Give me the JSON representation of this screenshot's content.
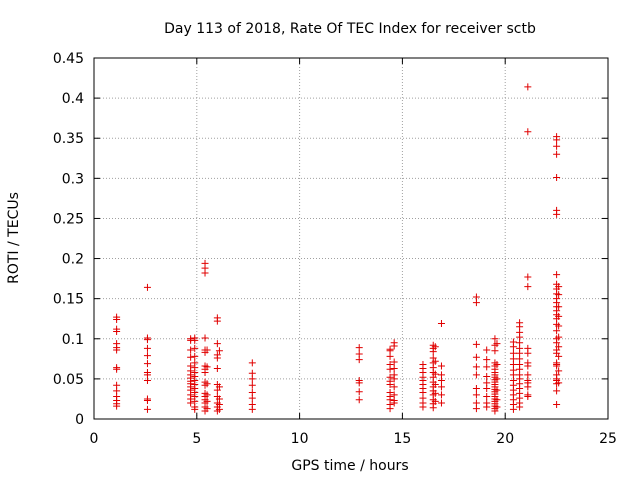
{
  "chart_data": {
    "type": "scatter",
    "title": "Day 113 of 2018, Rate Of TEC Index for receiver sctb",
    "xlabel": "GPS time / hours",
    "ylabel": "ROTI / TECUs",
    "xlim": [
      0,
      25
    ],
    "ylim": [
      0,
      0.45
    ],
    "xticks": [
      0,
      5,
      10,
      15,
      20,
      25
    ],
    "yticks": [
      0,
      0.05,
      0.1,
      0.15,
      0.2,
      0.25,
      0.3,
      0.35,
      0.4,
      0.45
    ],
    "xtick_labels": [
      "0",
      "5",
      "10",
      "15",
      "20",
      "25"
    ],
    "ytick_labels": [
      "0",
      "0.05",
      "0.1",
      "0.15",
      "0.2",
      "0.25",
      "0.3",
      "0.35",
      "0.4",
      "0.45"
    ],
    "grid": true,
    "marker": "+",
    "color": "#e00000",
    "series": [
      {
        "name": "ROTI",
        "points": [
          [
            1.1,
            0.127
          ],
          [
            1.1,
            0.124
          ],
          [
            1.1,
            0.112
          ],
          [
            1.1,
            0.109
          ],
          [
            1.1,
            0.094
          ],
          [
            1.1,
            0.089
          ],
          [
            1.1,
            0.086
          ],
          [
            1.1,
            0.064
          ],
          [
            1.1,
            0.062
          ],
          [
            1.1,
            0.042
          ],
          [
            1.1,
            0.035
          ],
          [
            1.1,
            0.028
          ],
          [
            1.1,
            0.023
          ],
          [
            1.1,
            0.019
          ],
          [
            1.1,
            0.016
          ],
          [
            2.6,
            0.164
          ],
          [
            2.6,
            0.101
          ],
          [
            2.6,
            0.099
          ],
          [
            2.6,
            0.088
          ],
          [
            2.6,
            0.079
          ],
          [
            2.6,
            0.069
          ],
          [
            2.6,
            0.058
          ],
          [
            2.6,
            0.055
          ],
          [
            2.6,
            0.048
          ],
          [
            2.6,
            0.025
          ],
          [
            2.6,
            0.023
          ],
          [
            2.6,
            0.012
          ],
          [
            4.7,
            0.1
          ],
          [
            4.7,
            0.098
          ],
          [
            4.7,
            0.086
          ],
          [
            4.7,
            0.077
          ],
          [
            4.7,
            0.066
          ],
          [
            4.7,
            0.06
          ],
          [
            4.7,
            0.055
          ],
          [
            4.7,
            0.051
          ],
          [
            4.7,
            0.047
          ],
          [
            4.7,
            0.044
          ],
          [
            4.7,
            0.04
          ],
          [
            4.7,
            0.036
          ],
          [
            4.7,
            0.03
          ],
          [
            4.7,
            0.025
          ],
          [
            4.7,
            0.02
          ],
          [
            4.9,
            0.101
          ],
          [
            4.9,
            0.098
          ],
          [
            4.9,
            0.088
          ],
          [
            4.9,
            0.078
          ],
          [
            4.9,
            0.07
          ],
          [
            4.9,
            0.064
          ],
          [
            4.9,
            0.058
          ],
          [
            4.9,
            0.053
          ],
          [
            4.9,
            0.048
          ],
          [
            4.9,
            0.043
          ],
          [
            4.9,
            0.038
          ],
          [
            4.9,
            0.033
          ],
          [
            4.9,
            0.028
          ],
          [
            4.9,
            0.022
          ],
          [
            4.9,
            0.015
          ],
          [
            4.9,
            0.012
          ],
          [
            5.4,
            0.194
          ],
          [
            5.4,
            0.188
          ],
          [
            5.4,
            0.182
          ],
          [
            5.4,
            0.101
          ],
          [
            5.4,
            0.086
          ],
          [
            5.4,
            0.083
          ],
          [
            5.4,
            0.066
          ],
          [
            5.4,
            0.062
          ],
          [
            5.4,
            0.058
          ],
          [
            5.4,
            0.046
          ],
          [
            5.4,
            0.042
          ],
          [
            5.4,
            0.032
          ],
          [
            5.4,
            0.028
          ],
          [
            5.4,
            0.024
          ],
          [
            5.4,
            0.02
          ],
          [
            5.4,
            0.015
          ],
          [
            5.4,
            0.01
          ],
          [
            5.5,
            0.086
          ],
          [
            5.5,
            0.065
          ],
          [
            5.5,
            0.044
          ],
          [
            5.5,
            0.03
          ],
          [
            5.5,
            0.022
          ],
          [
            5.5,
            0.013
          ],
          [
            6.0,
            0.126
          ],
          [
            6.0,
            0.122
          ],
          [
            6.0,
            0.094
          ],
          [
            6.0,
            0.08
          ],
          [
            6.0,
            0.076
          ],
          [
            6.0,
            0.063
          ],
          [
            6.0,
            0.043
          ],
          [
            6.0,
            0.036
          ],
          [
            6.0,
            0.028
          ],
          [
            6.0,
            0.02
          ],
          [
            6.0,
            0.015
          ],
          [
            6.0,
            0.01
          ],
          [
            6.1,
            0.085
          ],
          [
            6.1,
            0.04
          ],
          [
            6.1,
            0.025
          ],
          [
            6.1,
            0.018
          ],
          [
            6.1,
            0.012
          ],
          [
            7.7,
            0.07
          ],
          [
            7.7,
            0.057
          ],
          [
            7.7,
            0.05
          ],
          [
            7.7,
            0.042
          ],
          [
            7.7,
            0.033
          ],
          [
            7.7,
            0.026
          ],
          [
            7.7,
            0.018
          ],
          [
            7.7,
            0.012
          ],
          [
            12.9,
            0.089
          ],
          [
            12.9,
            0.081
          ],
          [
            12.9,
            0.074
          ],
          [
            12.9,
            0.048
          ],
          [
            12.9,
            0.045
          ],
          [
            12.9,
            0.034
          ],
          [
            12.9,
            0.024
          ],
          [
            14.4,
            0.087
          ],
          [
            14.4,
            0.085
          ],
          [
            14.4,
            0.078
          ],
          [
            14.4,
            0.068
          ],
          [
            14.4,
            0.062
          ],
          [
            14.4,
            0.052
          ],
          [
            14.4,
            0.047
          ],
          [
            14.4,
            0.043
          ],
          [
            14.4,
            0.033
          ],
          [
            14.4,
            0.028
          ],
          [
            14.4,
            0.024
          ],
          [
            14.4,
            0.018
          ],
          [
            14.4,
            0.013
          ],
          [
            14.6,
            0.095
          ],
          [
            14.6,
            0.091
          ],
          [
            14.6,
            0.071
          ],
          [
            14.6,
            0.063
          ],
          [
            14.6,
            0.055
          ],
          [
            14.6,
            0.05
          ],
          [
            14.6,
            0.04
          ],
          [
            14.6,
            0.03
          ],
          [
            14.6,
            0.023
          ],
          [
            14.6,
            0.02
          ],
          [
            16.0,
            0.068
          ],
          [
            16.0,
            0.063
          ],
          [
            16.0,
            0.058
          ],
          [
            16.0,
            0.052
          ],
          [
            16.0,
            0.048
          ],
          [
            16.0,
            0.043
          ],
          [
            16.0,
            0.038
          ],
          [
            16.0,
            0.033
          ],
          [
            16.0,
            0.026
          ],
          [
            16.0,
            0.02
          ],
          [
            16.0,
            0.015
          ],
          [
            16.5,
            0.092
          ],
          [
            16.5,
            0.088
          ],
          [
            16.5,
            0.084
          ],
          [
            16.5,
            0.076
          ],
          [
            16.5,
            0.07
          ],
          [
            16.5,
            0.064
          ],
          [
            16.5,
            0.058
          ],
          [
            16.5,
            0.052
          ],
          [
            16.5,
            0.046
          ],
          [
            16.5,
            0.04
          ],
          [
            16.5,
            0.035
          ],
          [
            16.5,
            0.03
          ],
          [
            16.5,
            0.024
          ],
          [
            16.5,
            0.019
          ],
          [
            16.5,
            0.014
          ],
          [
            16.6,
            0.09
          ],
          [
            16.6,
            0.072
          ],
          [
            16.6,
            0.056
          ],
          [
            16.6,
            0.043
          ],
          [
            16.6,
            0.032
          ],
          [
            16.6,
            0.022
          ],
          [
            16.9,
            0.119
          ],
          [
            16.9,
            0.066
          ],
          [
            16.9,
            0.055
          ],
          [
            16.9,
            0.048
          ],
          [
            16.9,
            0.04
          ],
          [
            16.9,
            0.03
          ],
          [
            16.9,
            0.02
          ],
          [
            18.6,
            0.152
          ],
          [
            18.6,
            0.145
          ],
          [
            18.6,
            0.093
          ],
          [
            18.6,
            0.077
          ],
          [
            18.6,
            0.065
          ],
          [
            18.6,
            0.055
          ],
          [
            18.6,
            0.038
          ],
          [
            18.6,
            0.03
          ],
          [
            18.6,
            0.02
          ],
          [
            18.6,
            0.013
          ],
          [
            19.1,
            0.086
          ],
          [
            19.1,
            0.074
          ],
          [
            19.1,
            0.065
          ],
          [
            19.1,
            0.053
          ],
          [
            19.1,
            0.045
          ],
          [
            19.1,
            0.038
          ],
          [
            19.1,
            0.028
          ],
          [
            19.1,
            0.02
          ],
          [
            19.1,
            0.015
          ],
          [
            19.5,
            0.1
          ],
          [
            19.5,
            0.092
          ],
          [
            19.5,
            0.085
          ],
          [
            19.5,
            0.07
          ],
          [
            19.5,
            0.066
          ],
          [
            19.5,
            0.062
          ],
          [
            19.5,
            0.058
          ],
          [
            19.5,
            0.055
          ],
          [
            19.5,
            0.052
          ],
          [
            19.5,
            0.049
          ],
          [
            19.5,
            0.046
          ],
          [
            19.5,
            0.043
          ],
          [
            19.5,
            0.04
          ],
          [
            19.5,
            0.037
          ],
          [
            19.5,
            0.034
          ],
          [
            19.5,
            0.031
          ],
          [
            19.5,
            0.028
          ],
          [
            19.5,
            0.025
          ],
          [
            19.5,
            0.022
          ],
          [
            19.5,
            0.019
          ],
          [
            19.5,
            0.016
          ],
          [
            19.5,
            0.013
          ],
          [
            19.5,
            0.01
          ],
          [
            19.6,
            0.094
          ],
          [
            19.6,
            0.068
          ],
          [
            19.6,
            0.05
          ],
          [
            19.6,
            0.036
          ],
          [
            19.6,
            0.024
          ],
          [
            19.6,
            0.015
          ],
          [
            20.4,
            0.096
          ],
          [
            20.4,
            0.09
          ],
          [
            20.4,
            0.082
          ],
          [
            20.4,
            0.075
          ],
          [
            20.4,
            0.068
          ],
          [
            20.4,
            0.061
          ],
          [
            20.4,
            0.055
          ],
          [
            20.4,
            0.048
          ],
          [
            20.4,
            0.042
          ],
          [
            20.4,
            0.036
          ],
          [
            20.4,
            0.03
          ],
          [
            20.4,
            0.024
          ],
          [
            20.4,
            0.018
          ],
          [
            20.4,
            0.012
          ],
          [
            20.7,
            0.12
          ],
          [
            20.7,
            0.115
          ],
          [
            20.7,
            0.108
          ],
          [
            20.7,
            0.102
          ],
          [
            20.7,
            0.095
          ],
          [
            20.7,
            0.088
          ],
          [
            20.7,
            0.082
          ],
          [
            20.7,
            0.075
          ],
          [
            20.7,
            0.068
          ],
          [
            20.7,
            0.062
          ],
          [
            20.7,
            0.055
          ],
          [
            20.7,
            0.05
          ],
          [
            20.7,
            0.044
          ],
          [
            20.7,
            0.038
          ],
          [
            20.7,
            0.032
          ],
          [
            20.7,
            0.026
          ],
          [
            20.7,
            0.02
          ],
          [
            20.7,
            0.015
          ],
          [
            21.1,
            0.414
          ],
          [
            21.1,
            0.358
          ],
          [
            21.1,
            0.177
          ],
          [
            21.1,
            0.165
          ],
          [
            21.1,
            0.088
          ],
          [
            21.1,
            0.082
          ],
          [
            21.1,
            0.07
          ],
          [
            21.1,
            0.066
          ],
          [
            21.1,
            0.055
          ],
          [
            21.1,
            0.048
          ],
          [
            21.1,
            0.045
          ],
          [
            21.1,
            0.04
          ],
          [
            21.1,
            0.03
          ],
          [
            21.1,
            0.028
          ],
          [
            22.5,
            0.352
          ],
          [
            22.5,
            0.348
          ],
          [
            22.5,
            0.34
          ],
          [
            22.5,
            0.33
          ],
          [
            22.5,
            0.301
          ],
          [
            22.5,
            0.26
          ],
          [
            22.5,
            0.255
          ],
          [
            22.5,
            0.18
          ],
          [
            22.5,
            0.168
          ],
          [
            22.5,
            0.162
          ],
          [
            22.5,
            0.156
          ],
          [
            22.5,
            0.15
          ],
          [
            22.5,
            0.145
          ],
          [
            22.5,
            0.14
          ],
          [
            22.5,
            0.135
          ],
          [
            22.5,
            0.13
          ],
          [
            22.5,
            0.125
          ],
          [
            22.5,
            0.118
          ],
          [
            22.5,
            0.11
          ],
          [
            22.5,
            0.1
          ],
          [
            22.5,
            0.095
          ],
          [
            22.5,
            0.086
          ],
          [
            22.5,
            0.082
          ],
          [
            22.5,
            0.07
          ],
          [
            22.5,
            0.068
          ],
          [
            22.5,
            0.066
          ],
          [
            22.5,
            0.055
          ],
          [
            22.5,
            0.05
          ],
          [
            22.5,
            0.048
          ],
          [
            22.5,
            0.044
          ],
          [
            22.5,
            0.035
          ],
          [
            22.5,
            0.018
          ],
          [
            22.6,
            0.165
          ],
          [
            22.6,
            0.155
          ],
          [
            22.6,
            0.14
          ],
          [
            22.6,
            0.128
          ],
          [
            22.6,
            0.116
          ],
          [
            22.6,
            0.102
          ],
          [
            22.6,
            0.09
          ],
          [
            22.6,
            0.078
          ],
          [
            22.6,
            0.06
          ],
          [
            22.6,
            0.045
          ]
        ]
      }
    ]
  }
}
